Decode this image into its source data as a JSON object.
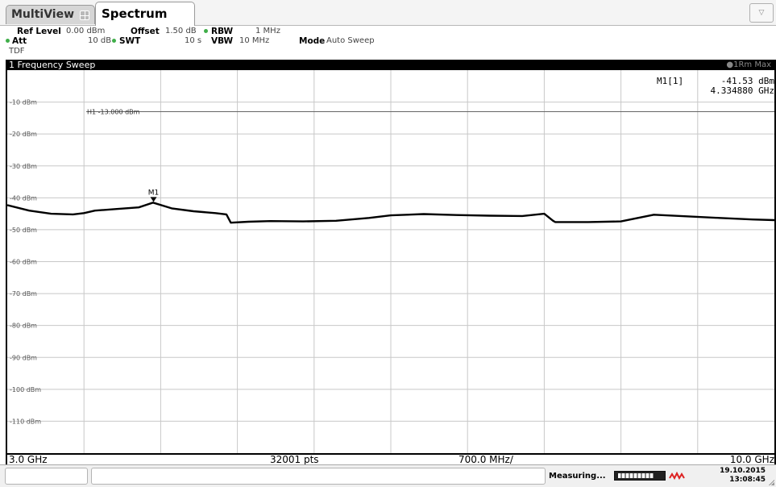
{
  "tabs": [
    {
      "label": "MultiView",
      "active": false
    },
    {
      "label": "Spectrum",
      "active": true
    }
  ],
  "dropdown_symbol": "▽",
  "settings": {
    "ref_level_label": "Ref Level",
    "ref_level_value": "0.00 dBm",
    "offset_label": "Offset",
    "offset_value": "1.50 dB",
    "rbw_label": "RBW",
    "rbw_value": "1 MHz",
    "att_label": "Att",
    "att_value": "10 dB",
    "swt_label": "SWT",
    "swt_value": "10 s",
    "vbw_label": "VBW",
    "vbw_value": "10 MHz",
    "mode_label": "Mode",
    "mode_value": "Auto Sweep",
    "tdf": "TDF",
    "indicator_color": "#3fae49"
  },
  "diagram": {
    "title": "1 Frequency Sweep",
    "trace_info": "●1Rm Max",
    "marker_readout": {
      "label": "M1[1]",
      "level": "-41.53 dBm",
      "frequency": "4.334880 GHz"
    },
    "h1_line_label": "H1  -13.000 dBm",
    "start": "3.0 GHz",
    "points": "32001 pts",
    "span_per_div": "700.0 MHz/",
    "stop": "10.0 GHz"
  },
  "status": {
    "state": "Measuring...",
    "progress": 0.78,
    "date": "19.10.2015",
    "time": "13:08:45"
  },
  "chart_data": {
    "type": "line",
    "xlabel": "",
    "ylabel": "",
    "x_unit": "GHz",
    "y_unit": "dBm",
    "xlim": [
      3.0,
      10.0
    ],
    "ylim": [
      -120,
      0
    ],
    "y_ticks": [
      "-10 dBm",
      "-20 dBm",
      "-30 dBm",
      "-40 dBm",
      "-50 dBm",
      "-60 dBm",
      "-70 dBm",
      "-80 dBm",
      "-90 dBm",
      "-100 dBm",
      "-110 dBm"
    ],
    "grid": true,
    "reference_line": {
      "name": "H1",
      "level": -13.0
    },
    "marker": {
      "name": "M1",
      "x": 4.33488,
      "y": -41.53
    },
    "series": [
      {
        "x": [
          3.0,
          3.2,
          3.4,
          3.6,
          3.7,
          3.8,
          4.0,
          4.2,
          4.33,
          4.5,
          4.7,
          4.9,
          5.0,
          5.04,
          5.2,
          5.4,
          5.7,
          6.0,
          6.3,
          6.5,
          6.8,
          7.1,
          7.4,
          7.7,
          7.9,
          7.98,
          8.0,
          8.3,
          8.6,
          8.9,
          9.2,
          9.5,
          9.8,
          10.0
        ],
        "y": [
          -42.3,
          -44.0,
          -45.0,
          -45.2,
          -44.8,
          -44.0,
          -43.5,
          -43.0,
          -41.5,
          -43.3,
          -44.2,
          -44.8,
          -45.2,
          -47.8,
          -47.5,
          -47.3,
          -47.4,
          -47.2,
          -46.3,
          -45.5,
          -45.1,
          -45.4,
          -45.6,
          -45.7,
          -45.0,
          -47.2,
          -47.6,
          -47.6,
          -47.4,
          -45.3,
          -45.8,
          -46.3,
          -46.8,
          -47.0
        ]
      }
    ]
  }
}
